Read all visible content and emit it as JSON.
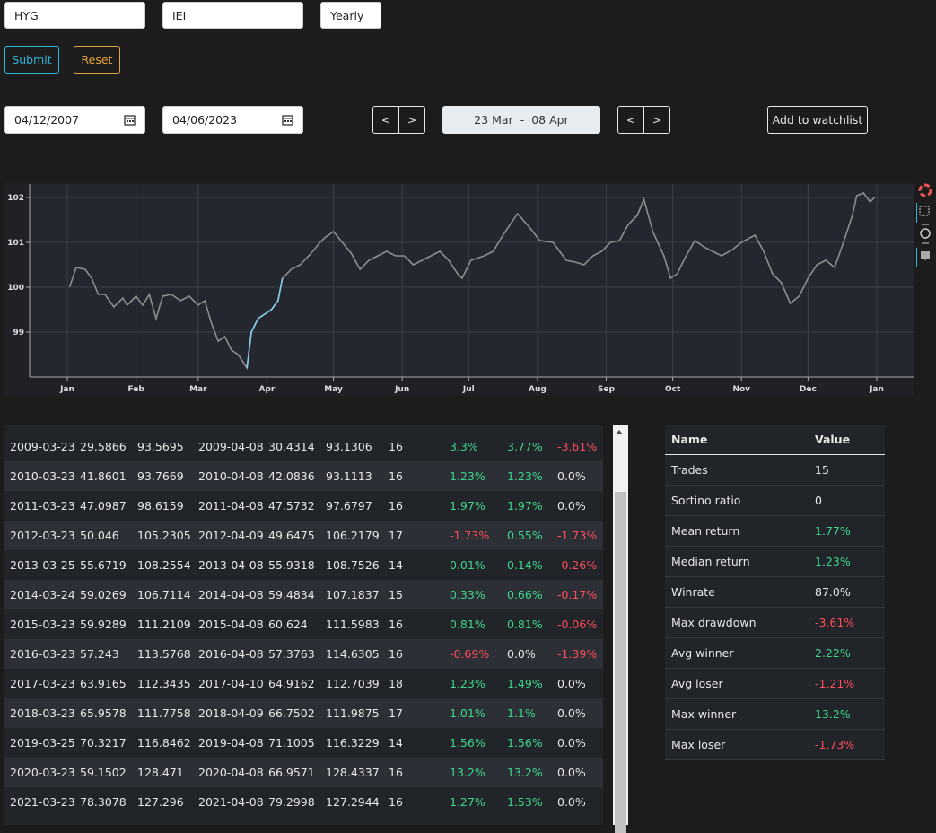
{
  "form": {
    "symbol1": "HYG",
    "symbol2": "IEI",
    "period": "Yearly",
    "submit": "Submit",
    "reset": "Reset",
    "start_date": "04/12/2007",
    "end_date": "04/06/2023",
    "prev": "<",
    "next": ">",
    "range_start": "23 Mar",
    "range_sep": "-",
    "range_end": "08 Apr",
    "watchlist": "Add to watchlist"
  },
  "chart_data": {
    "type": "line",
    "x": [
      1,
      4,
      8,
      11,
      14,
      17,
      21,
      25,
      27,
      31,
      34,
      37,
      40,
      43,
      47,
      51,
      55,
      59,
      62,
      65,
      68,
      71,
      74,
      77,
      81,
      83,
      86,
      89,
      92,
      95,
      97,
      101,
      105,
      110,
      114,
      116,
      120,
      124,
      128,
      132,
      136,
      140,
      144,
      148,
      152,
      156,
      160,
      164,
      168,
      172,
      176,
      178,
      182,
      188,
      192,
      197,
      203,
      209,
      213,
      219,
      225,
      229,
      233,
      237,
      241,
      245,
      249,
      253,
      257,
      260,
      264,
      269,
      272,
      275,
      279,
      283,
      287,
      291,
      295,
      300,
      304,
      310,
      314,
      318,
      322,
      326,
      330,
      334,
      338,
      342,
      346,
      350,
      354,
      356,
      359,
      362,
      364
    ],
    "series": [
      {
        "color": "#8e8e8e",
        "values": [
          100.0,
          100.44,
          100.4,
          100.2,
          99.84,
          99.84,
          99.56,
          99.76,
          99.6,
          99.8,
          99.6,
          99.84,
          99.3,
          99.8,
          99.84,
          99.7,
          99.8,
          99.6,
          99.7,
          99.2,
          98.8,
          98.9,
          98.6,
          98.5,
          98.2,
          99.0,
          99.3,
          99.4,
          99.5,
          99.7,
          100.2,
          100.4,
          100.5,
          100.76,
          101.0,
          101.1,
          101.24,
          101.0,
          100.76,
          100.4,
          100.6,
          100.7,
          100.8,
          100.7,
          100.7,
          100.5,
          100.6,
          100.7,
          100.8,
          100.6,
          100.3,
          100.2,
          100.6,
          100.7,
          100.8,
          101.2,
          101.64,
          101.3,
          101.04,
          101.0,
          100.6,
          100.56,
          100.5,
          100.7,
          100.8,
          101.0,
          101.04,
          101.4,
          101.6,
          101.96,
          101.24,
          100.7,
          100.2,
          100.3,
          100.7,
          101.04,
          100.9,
          100.8,
          100.7,
          100.84,
          101.0,
          101.16,
          100.8,
          100.3,
          100.1,
          99.64,
          99.8,
          100.2,
          100.5,
          100.6,
          100.44,
          101.0,
          101.6,
          102.04,
          102.1,
          101.9,
          102.0
        ]
      },
      {
        "color": "#87cdea",
        "values": [
          null,
          null,
          null,
          null,
          null,
          null,
          null,
          null,
          null,
          null,
          null,
          null,
          null,
          null,
          null,
          null,
          null,
          null,
          null,
          null,
          null,
          null,
          null,
          null,
          98.2,
          99.0,
          99.3,
          99.4,
          99.5,
          99.7,
          100.2,
          null,
          null,
          null,
          null,
          null,
          null,
          null,
          null,
          null,
          null,
          null,
          null,
          null,
          null,
          null,
          null,
          null,
          null,
          null,
          null,
          null,
          null,
          null,
          null,
          null,
          null,
          null,
          null,
          null,
          null,
          null,
          null,
          null,
          null,
          null,
          null,
          null,
          null,
          null,
          null,
          null,
          null,
          null,
          null,
          null,
          null,
          null,
          null,
          null,
          null,
          null,
          null,
          null,
          null,
          null,
          null,
          null,
          null,
          null,
          null,
          null,
          null,
          null,
          null,
          null,
          null
        ]
      }
    ],
    "xlim": [
      -17,
      382
    ],
    "ylim": [
      98.0,
      102.3
    ],
    "xticks": [
      {
        "value": 0,
        "label": "Jan"
      },
      {
        "value": 31,
        "label": "Feb"
      },
      {
        "value": 59,
        "label": "Mar"
      },
      {
        "value": 90,
        "label": "Apr"
      },
      {
        "value": 120,
        "label": "May"
      },
      {
        "value": 151,
        "label": "Jun"
      },
      {
        "value": 181,
        "label": "Jul"
      },
      {
        "value": 212,
        "label": "Aug"
      },
      {
        "value": 243,
        "label": "Sep"
      },
      {
        "value": 273,
        "label": "Oct"
      },
      {
        "value": 304,
        "label": "Nov"
      },
      {
        "value": 334,
        "label": "Dec"
      },
      {
        "value": 365,
        "label": "Jan"
      }
    ],
    "yticks": [
      99,
      100,
      101,
      102
    ],
    "grid": true
  },
  "table": {
    "rows": [
      [
        "2009-03-23",
        "29.5866",
        "93.5695",
        "2009-04-08",
        "30.4314",
        "93.1306",
        "16",
        "3.3%",
        "3.77%",
        "-3.61%"
      ],
      [
        "2010-03-23",
        "41.8601",
        "93.7669",
        "2010-04-08",
        "42.0836",
        "93.1113",
        "16",
        "1.23%",
        "1.23%",
        "0.0%"
      ],
      [
        "2011-03-23",
        "47.0987",
        "98.6159",
        "2011-04-08",
        "47.5732",
        "97.6797",
        "16",
        "1.97%",
        "1.97%",
        "0.0%"
      ],
      [
        "2012-03-23",
        "50.046",
        "105.2305",
        "2012-04-09",
        "49.6475",
        "106.2179",
        "17",
        "-1.73%",
        "0.55%",
        "-1.73%"
      ],
      [
        "2013-03-25",
        "55.6719",
        "108.2554",
        "2013-04-08",
        "55.9318",
        "108.7526",
        "14",
        "0.01%",
        "0.14%",
        "-0.26%"
      ],
      [
        "2014-03-24",
        "59.0269",
        "106.7114",
        "2014-04-08",
        "59.4834",
        "107.1837",
        "15",
        "0.33%",
        "0.66%",
        "-0.17%"
      ],
      [
        "2015-03-23",
        "59.9289",
        "111.2109",
        "2015-04-08",
        "60.624",
        "111.5983",
        "16",
        "0.81%",
        "0.81%",
        "-0.06%"
      ],
      [
        "2016-03-23",
        "57.243",
        "113.5768",
        "2016-04-08",
        "57.3763",
        "114.6305",
        "16",
        "-0.69%",
        "0.0%",
        "-1.39%"
      ],
      [
        "2017-03-23",
        "63.9165",
        "112.3435",
        "2017-04-10",
        "64.9162",
        "112.7039",
        "18",
        "1.23%",
        "1.49%",
        "0.0%"
      ],
      [
        "2018-03-23",
        "65.9578",
        "111.7758",
        "2018-04-09",
        "66.7502",
        "111.9875",
        "17",
        "1.01%",
        "1.1%",
        "0.0%"
      ],
      [
        "2019-03-25",
        "70.3217",
        "116.8462",
        "2019-04-08",
        "71.1005",
        "116.3229",
        "14",
        "1.56%",
        "1.56%",
        "0.0%"
      ],
      [
        "2020-03-23",
        "59.1502",
        "128.471",
        "2020-04-08",
        "66.9571",
        "128.4337",
        "16",
        "13.2%",
        "13.2%",
        "0.0%"
      ],
      [
        "2021-03-23",
        "78.3078",
        "127.296",
        "2021-04-08",
        "79.2998",
        "127.2944",
        "16",
        "1.27%",
        "1.53%",
        "0.0%"
      ]
    ]
  },
  "stats": {
    "columns": [
      "Name",
      "Value"
    ],
    "rows": [
      {
        "name": "Trades",
        "value": "15",
        "color": "#e8e8e8"
      },
      {
        "name": "Sortino ratio",
        "value": "0",
        "color": "#e8e8e8"
      },
      {
        "name": "Mean return",
        "value": "1.77%",
        "color": "#3dd68c"
      },
      {
        "name": "Median return",
        "value": "1.23%",
        "color": "#3dd68c"
      },
      {
        "name": "Winrate",
        "value": "87.0%",
        "color": "#e8e8e8"
      },
      {
        "name": "Max drawdown",
        "value": "-3.61%",
        "color": "#ff4d5a"
      },
      {
        "name": "Avg winner",
        "value": "2.22%",
        "color": "#3dd68c"
      },
      {
        "name": "Avg loser",
        "value": "-1.21%",
        "color": "#ff4d5a"
      },
      {
        "name": "Max winner",
        "value": "13.2%",
        "color": "#3dd68c"
      },
      {
        "name": "Max loser",
        "value": "-1.73%",
        "color": "#ff4d5a"
      }
    ]
  }
}
